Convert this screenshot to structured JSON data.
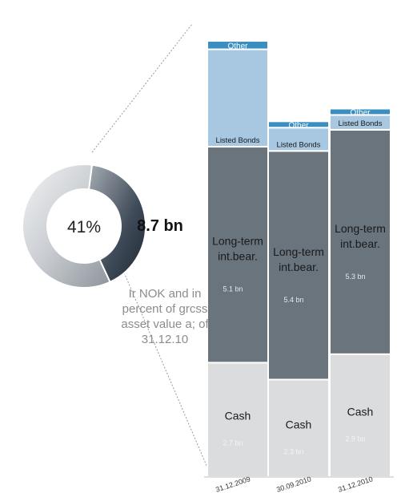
{
  "chart_data": [
    {
      "type": "pie",
      "style": "donut",
      "slices": [
        {
          "label": "8.7 bn",
          "percent": 41
        },
        {
          "label": "",
          "percent": 59
        }
      ],
      "center_label": "41%",
      "value_label": "8.7 bn",
      "note": "Ir NOK and in percent of grcss asset value a; of 31.12.10"
    },
    {
      "type": "bar",
      "stacked": true,
      "categories": [
        "31.12.2009",
        "30.09.2010",
        "31.12.2010"
      ],
      "unit": "bn NOK",
      "ylim": [
        0,
        11
      ],
      "series": [
        {
          "name": "Cash",
          "values": [
            2.7,
            2.3,
            2.9
          ],
          "value_labels": [
            "2.7 bn",
            "2.3 bn",
            "2.9 bn"
          ],
          "color": "#dadcde"
        },
        {
          "name": "Long-term int.bear.",
          "values": [
            5.1,
            5.4,
            5.3
          ],
          "value_labels": [
            "5.1 bn",
            "5.4 bn",
            "5.3 bn"
          ],
          "color": "#69747d"
        },
        {
          "name": "Listed Bonds",
          "values": [
            2.3,
            0.55,
            0.35
          ],
          "color": "#a7c8e0"
        },
        {
          "name": "Other",
          "values": [
            0.2,
            0.15,
            0.15
          ],
          "color": "#3a8fc0"
        }
      ],
      "segment_label_lines": {
        "Cash": [
          "Cash"
        ],
        "Long-term int.bear.": [
          "Long-term",
          "int.bear."
        ],
        "Listed Bonds": [
          "Listed Bonds"
        ],
        "Other": [
          "Other"
        ]
      }
    }
  ]
}
